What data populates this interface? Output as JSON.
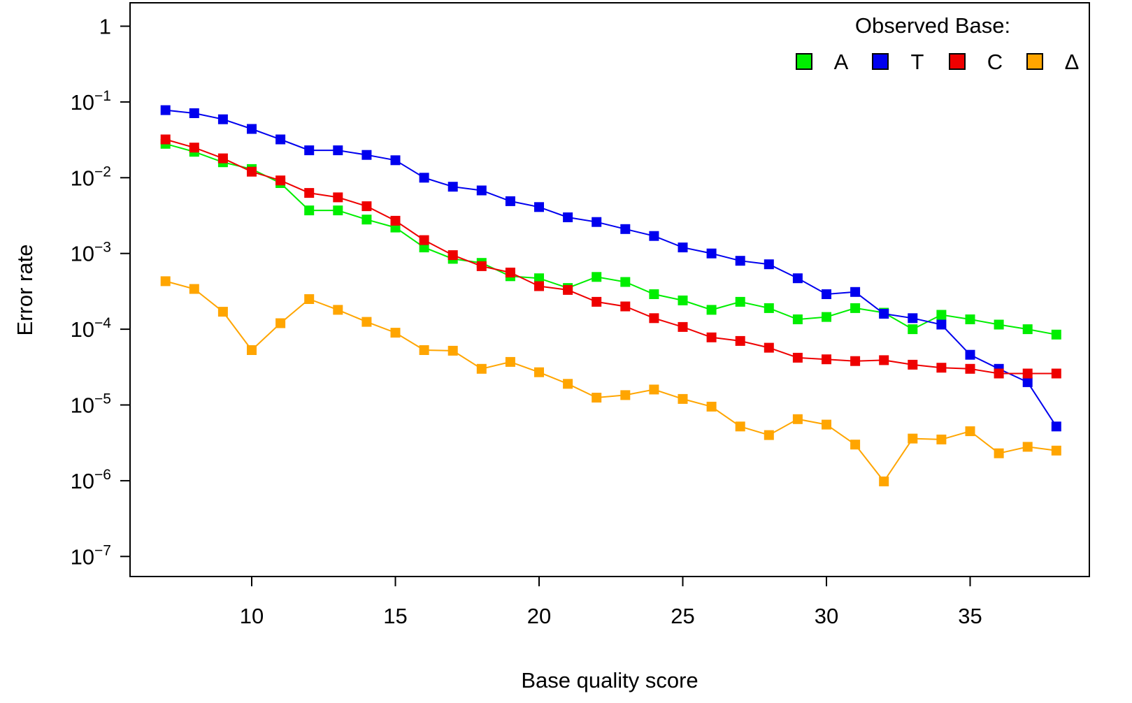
{
  "chart_data": {
    "type": "line",
    "title": "",
    "xlabel": "Base quality score",
    "ylabel": "Error rate",
    "xlim": [
      6.2,
      39
    ],
    "ylim": [
      1e-07,
      1
    ],
    "yscale": "log",
    "grid": false,
    "x_ticks": [
      10,
      15,
      20,
      25,
      30,
      35
    ],
    "x_tick_labels": [
      "10",
      "15",
      "20",
      "25",
      "30",
      "35"
    ],
    "y_ticks": [
      {
        "value": 1,
        "base": "1",
        "exp": ""
      },
      {
        "value": 0.1,
        "base": "10",
        "exp": "−1"
      },
      {
        "value": 0.01,
        "base": "10",
        "exp": "−2"
      },
      {
        "value": 0.001,
        "base": "10",
        "exp": "−3"
      },
      {
        "value": 0.0001,
        "base": "10",
        "exp": "−4"
      },
      {
        "value": 1e-05,
        "base": "10",
        "exp": "−5"
      },
      {
        "value": 1e-06,
        "base": "10",
        "exp": "−6"
      },
      {
        "value": 1e-07,
        "base": "10",
        "exp": "−7"
      }
    ],
    "legend": {
      "title": "Observed Base:",
      "position": "top-right",
      "entries": [
        "A",
        "T",
        "C",
        "Δ"
      ]
    },
    "x": [
      7,
      8,
      9,
      10,
      11,
      12,
      13,
      14,
      15,
      16,
      17,
      18,
      19,
      20,
      21,
      22,
      23,
      24,
      25,
      26,
      27,
      28,
      29,
      30,
      31,
      32,
      33,
      34,
      35,
      36,
      37,
      38
    ],
    "series": [
      {
        "name": "A",
        "color": "#00ee00",
        "values": [
          0.028,
          0.022,
          0.016,
          0.013,
          0.0085,
          0.0037,
          0.0037,
          0.0028,
          0.0022,
          0.0012,
          0.00085,
          0.00075,
          0.0005,
          0.00047,
          0.00035,
          0.00049,
          0.00042,
          0.00029,
          0.00024,
          0.00018,
          0.00023,
          0.00019,
          0.000135,
          0.000145,
          0.00019,
          0.000165,
          0.0001,
          0.000155,
          0.000135,
          0.000115,
          0.0001,
          8.5e-05
        ]
      },
      {
        "name": "T",
        "color": "#0000ee",
        "values": [
          0.078,
          0.071,
          0.059,
          0.044,
          0.032,
          0.023,
          0.023,
          0.02,
          0.017,
          0.01,
          0.0076,
          0.0068,
          0.0049,
          0.0041,
          0.003,
          0.0026,
          0.0021,
          0.0017,
          0.0012,
          0.001,
          0.0008,
          0.00072,
          0.00047,
          0.00029,
          0.00031,
          0.00016,
          0.00014,
          0.000115,
          4.6e-05,
          3e-05,
          2e-05,
          5.2e-06
        ]
      },
      {
        "name": "C",
        "color": "#ee0000",
        "values": [
          0.032,
          0.025,
          0.018,
          0.012,
          0.0092,
          0.0063,
          0.0055,
          0.0042,
          0.0027,
          0.0015,
          0.00095,
          0.00068,
          0.00056,
          0.00037,
          0.00033,
          0.00023,
          0.0002,
          0.00014,
          0.000107,
          7.8e-05,
          7e-05,
          5.7e-05,
          4.2e-05,
          4e-05,
          3.8e-05,
          3.9e-05,
          3.4e-05,
          3.1e-05,
          3e-05,
          2.6e-05,
          2.6e-05,
          2.6e-05
        ]
      },
      {
        "name": "Δ",
        "color": "#ffa500",
        "values": [
          0.00043,
          0.00034,
          0.00017,
          5.3e-05,
          0.00012,
          0.00025,
          0.00018,
          0.000125,
          9e-05,
          5.3e-05,
          5.2e-05,
          3e-05,
          3.7e-05,
          2.7e-05,
          1.9e-05,
          1.25e-05,
          1.35e-05,
          1.6e-05,
          1.2e-05,
          9.5e-06,
          5.2e-06,
          4e-06,
          6.5e-06,
          5.5e-06,
          3e-06,
          9.8e-07,
          3.6e-06,
          3.5e-06,
          4.5e-06,
          2.3e-06,
          2.8e-06,
          2.5e-06
        ]
      }
    ]
  }
}
